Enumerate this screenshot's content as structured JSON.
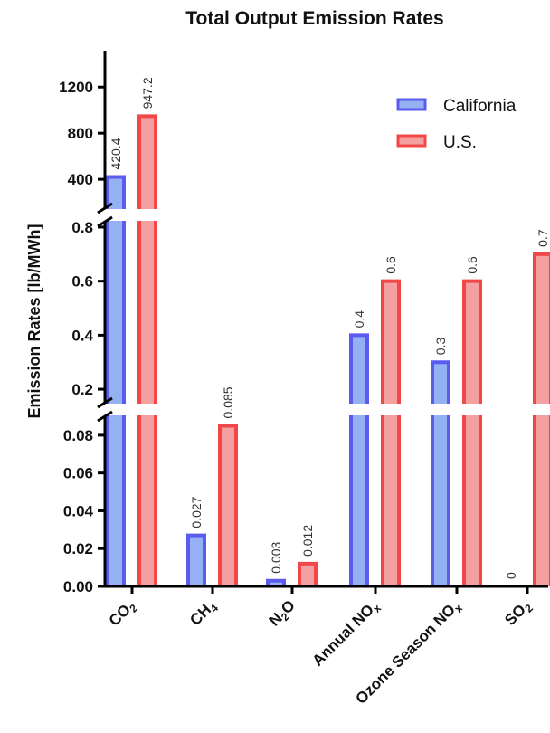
{
  "chart_data": {
    "type": "bar",
    "title": "Total Output Emission Rates",
    "ylabel": "Emission Rates [lb/MWh]",
    "xlabel": "",
    "categories": [
      {
        "main": "CO",
        "sub": "2",
        "post": ""
      },
      {
        "main": "CH",
        "sub": "4",
        "post": ""
      },
      {
        "main": "N",
        "sub": "2",
        "post": "O"
      },
      {
        "main": "Annual NO",
        "sub": "x",
        "post": ""
      },
      {
        "main": "Ozone Season NO",
        "sub": "x",
        "post": ""
      },
      {
        "main": "SO",
        "sub": "2",
        "post": ""
      }
    ],
    "series": [
      {
        "name": "California",
        "color_fill": "#93B1F3",
        "color_edge": "#5B5BF0",
        "values": [
          420.4,
          0.027,
          0.003,
          0.4,
          0.3,
          0
        ],
        "labels": [
          "420.4",
          "0.027",
          "0.003",
          "0.4",
          "0.3",
          "0"
        ]
      },
      {
        "name": "U.S.",
        "color_fill": "#F4A0A0",
        "color_edge": "#F04848",
        "values": [
          947.2,
          0.085,
          0.012,
          0.6,
          0.6,
          0.7
        ],
        "labels": [
          "947.2",
          "0.085",
          "0.012",
          "0.6",
          "0.6",
          "0.7"
        ]
      }
    ],
    "y_segments": [
      {
        "range": [
          0,
          0.09
        ],
        "ticks": [
          0.0,
          0.02,
          0.04,
          0.06,
          0.08
        ],
        "tick_labels": [
          "0.00",
          "0.02",
          "0.04",
          "0.06",
          "0.08"
        ]
      },
      {
        "range": [
          0.15,
          0.82
        ],
        "ticks": [
          0.2,
          0.4,
          0.6,
          0.8
        ],
        "tick_labels": [
          "0.2",
          "0.4",
          "0.6",
          "0.8"
        ]
      },
      {
        "range": [
          150,
          1500
        ],
        "ticks": [
          400,
          800,
          1200
        ],
        "tick_labels": [
          "400",
          "800",
          "1200"
        ]
      }
    ],
    "axis_breaks": true,
    "grid": false,
    "legend_position": "top-right"
  }
}
